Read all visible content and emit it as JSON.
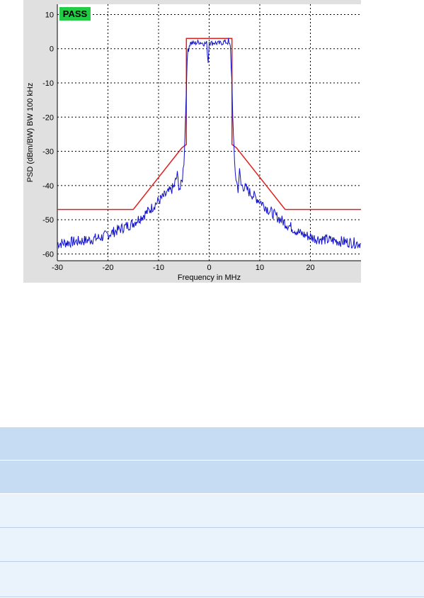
{
  "chart_data": {
    "type": "line",
    "xlabel": "Frequency in MHz",
    "ylabel": "PSD (dBm/BW) BW 100 kHz",
    "xlim": [
      -30,
      30
    ],
    "ylim": [
      -62,
      13
    ],
    "x_ticks": [
      -30,
      -20,
      -10,
      0,
      10,
      20
    ],
    "y_ticks": [
      10,
      0,
      -10,
      -20,
      -30,
      -40,
      -50,
      -60
    ],
    "grid": true,
    "status_badge": {
      "text": "PASS",
      "color": "#22cc44"
    },
    "series": [
      {
        "color": "#e02020",
        "style": "mask",
        "x": [
          -30,
          -15,
          -5.4,
          -4.5,
          -4.5,
          4.5,
          4.5,
          5.4,
          15,
          30
        ],
        "y": [
          -47,
          -47,
          -29,
          -28,
          3,
          3,
          -28,
          -29,
          -47,
          -47
        ]
      },
      {
        "color": "#1010cc",
        "style": "spectrum",
        "x": [
          -30,
          -27,
          -24,
          -21,
          -18,
          -15,
          -12,
          -10,
          -8,
          -7,
          -6.3,
          -6.0,
          -5.7,
          -5.3,
          -5.0,
          -4.8,
          -4.5,
          -4.2,
          -3.8,
          -3,
          -2,
          -1,
          -0.5,
          -0.2,
          0,
          0.2,
          0.5,
          1,
          2,
          3,
          3.8,
          4.2,
          4.5,
          4.8,
          5.0,
          5.3,
          5.7,
          6.0,
          6.3,
          7,
          8,
          10,
          12,
          15,
          18,
          21,
          24,
          27,
          30
        ],
        "y": [
          -57,
          -56.5,
          -56,
          -55,
          -53,
          -51,
          -47.5,
          -44.5,
          -42,
          -40.5,
          -37,
          -40,
          -41,
          -38,
          -33,
          -26,
          -10,
          0,
          1.8,
          1.5,
          2,
          1.5,
          1.6,
          -4,
          2.2,
          1.6,
          1.6,
          1.8,
          1.5,
          2,
          1.8,
          0,
          -10,
          -26,
          -33,
          -38,
          -41,
          -36,
          -40,
          -40.5,
          -42,
          -44.5,
          -47.5,
          -51,
          -54,
          -55.5,
          -56,
          -56.5,
          -57
        ]
      }
    ]
  }
}
